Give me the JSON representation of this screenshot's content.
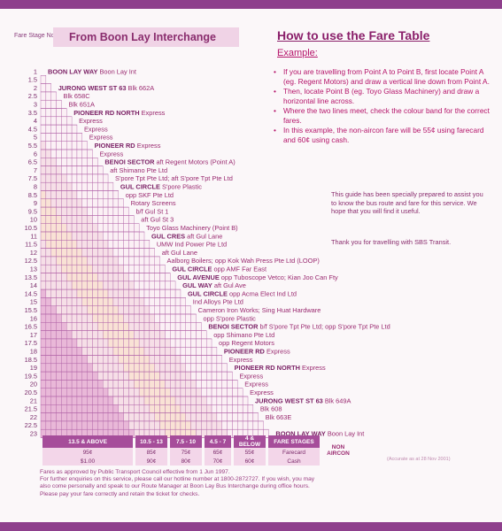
{
  "header": {
    "fare_stage_label": "Fare Stage No.",
    "title": "From Boon Lay Interchange"
  },
  "instructions": {
    "title": "How to use the Fare Table",
    "example_label": "Example:",
    "steps": [
      "If you are travelling from Point A to Point B, first locate Point A (eg. Regent Motors) and draw a vertical line down from Point A.",
      "Then, locate Point B (eg. Toyo Glass Machinery) and draw a horizontal line across.",
      "Where the two lines meet, check the colour band for the correct fares.",
      "In this example, the non-aircon fare will be 55¢ using farecard and 60¢ using cash."
    ],
    "guide": "This guide has been specially prepared to assist you to know the bus route and fare for this service. We hope that you will find it useful.",
    "thanks": "Thank you for travelling with SBS Transit."
  },
  "stages": [
    "1",
    "1.5",
    "2",
    "2.5",
    "3",
    "3.5",
    "4",
    "4.5",
    "5",
    "5.5",
    "6",
    "6.5",
    "7",
    "7.5",
    "8",
    "8.5",
    "9",
    "9.5",
    "10",
    "10.5",
    "11",
    "11.5",
    "12",
    "12.5",
    "13",
    "13.5",
    "14",
    "14.5",
    "15",
    "15.5",
    "16",
    "16.5",
    "17",
    "17.5",
    "18",
    "18.5",
    "19",
    "19.5",
    "20",
    "20.5",
    "21",
    "21.5",
    "22",
    "22.5",
    "23"
  ],
  "stops": [
    {
      "b": "BOON LAY WAY",
      "t": " Boon Lay Int"
    },
    {
      "b": "",
      "t": ""
    },
    {
      "b": "JURONG WEST ST 63",
      "t": " Blk 662A"
    },
    {
      "b": "",
      "t": "Blk 658C"
    },
    {
      "b": "",
      "t": "Blk 651A"
    },
    {
      "b": "PIONEER RD NORTH",
      "t": " Express"
    },
    {
      "b": "",
      "t": "Express"
    },
    {
      "b": "",
      "t": "Express"
    },
    {
      "b": "",
      "t": "Express"
    },
    {
      "b": "PIONEER RD",
      "t": " Express"
    },
    {
      "b": "",
      "t": "Express"
    },
    {
      "b": "BENOI SECTOR",
      "t": " aft  Regent Motors (Point A)"
    },
    {
      "b": "",
      "t": "aft Shimano Pte Ltd"
    },
    {
      "b": "",
      "t": "S'pore Tpt Pte Ltd; aft S'pore Tpt Pte Ltd"
    },
    {
      "b": "GUL CIRCLE",
      "t": " S'pore Plastic"
    },
    {
      "b": "",
      "t": "opp SKF Pte Ltd"
    },
    {
      "b": "",
      "t": "Rotary Screens"
    },
    {
      "b": "",
      "t": "b/f Gul St 1"
    },
    {
      "b": "",
      "t": "aft Gul St 3"
    },
    {
      "b": "",
      "t": "Toyo Glass Machinery (Point B)"
    },
    {
      "b": "GUL CRES",
      "t": " aft Gul Lane"
    },
    {
      "b": "",
      "t": "UMW Ind Power Pte Ltd"
    },
    {
      "b": "",
      "t": "aft Gul Lane"
    },
    {
      "b": "",
      "t": "Aalborg Boilers; opp Kok Wah Press Pte Ltd (LOOP)"
    },
    {
      "b": "GUL CIRCLE",
      "t": " opp AMF Far East"
    },
    {
      "b": "GUL AVENUE",
      "t": " opp Tuboscope Vetco; Kian Joo Can Fty"
    },
    {
      "b": "GUL WAY",
      "t": " aft Gul Ave"
    },
    {
      "b": "GUL CIRCLE",
      "t": " opp Acma Elect Ind Ltd"
    },
    {
      "b": "",
      "t": "Ind Alloys Pte Ltd"
    },
    {
      "b": "",
      "t": "Cameron Iron Works; Sing Huat Hardware"
    },
    {
      "b": "",
      "t": "opp S'pore Plastic"
    },
    {
      "b": "BENOI SECTOR",
      "t": " b/f S'pore Tpt Pte Ltd; opp S'pore Tpt Pte Ltd"
    },
    {
      "b": "",
      "t": "opp Shimano Pte Ltd"
    },
    {
      "b": "",
      "t": "opp Regent Motors"
    },
    {
      "b": "PIONEER RD",
      "t": " Express"
    },
    {
      "b": "",
      "t": "Express"
    },
    {
      "b": "PIONEER RD NORTH",
      "t": " Express"
    },
    {
      "b": "",
      "t": "Express"
    },
    {
      "b": "",
      "t": "Express"
    },
    {
      "b": "",
      "t": "Express"
    },
    {
      "b": "JURONG WEST ST 63",
      "t": " Blk 649A"
    },
    {
      "b": "",
      "t": "Blk 608"
    },
    {
      "b": "",
      "t": "Blk 663E"
    },
    {
      "b": "",
      "t": ""
    },
    {
      "b": "BOON LAY WAY",
      "t": " Boon Lay Int"
    }
  ],
  "legend": {
    "headers": [
      "13.5 & ABOVE",
      "10.5 - 13",
      "7.5 - 10",
      "4.5 - 7",
      "4 & BELOW",
      "FARE STAGES"
    ],
    "farecard": [
      "95¢",
      "85¢",
      "75¢",
      "65¢",
      "55¢",
      "Farecard"
    ],
    "cash": [
      "$1.00",
      "90¢",
      "80¢",
      "70¢",
      "60¢",
      "Cash"
    ],
    "non_aircon": "NON AIRCON"
  },
  "footer": {
    "line1": "Fares as approved by Public Transport Council effective from 1 Jun 1997.",
    "line2": "For further enquiries on this service, please call our hotline number at 1800-2872727.  If you wish, you may also come personally and speak to our Route Manager at Boon Lay Bus Interchange during office hours.",
    "line3": "Please pay your fare correctly and retain the ticket for checks.",
    "dated": "(Accurate as at 28 Nov 2001)"
  },
  "colors": {
    "band_dark": "#e9b8d8",
    "band_light": "#f6dfe7",
    "band_peach": "#f9e2d5",
    "grid": "#b163a7",
    "accent": "#8e3f8c"
  }
}
